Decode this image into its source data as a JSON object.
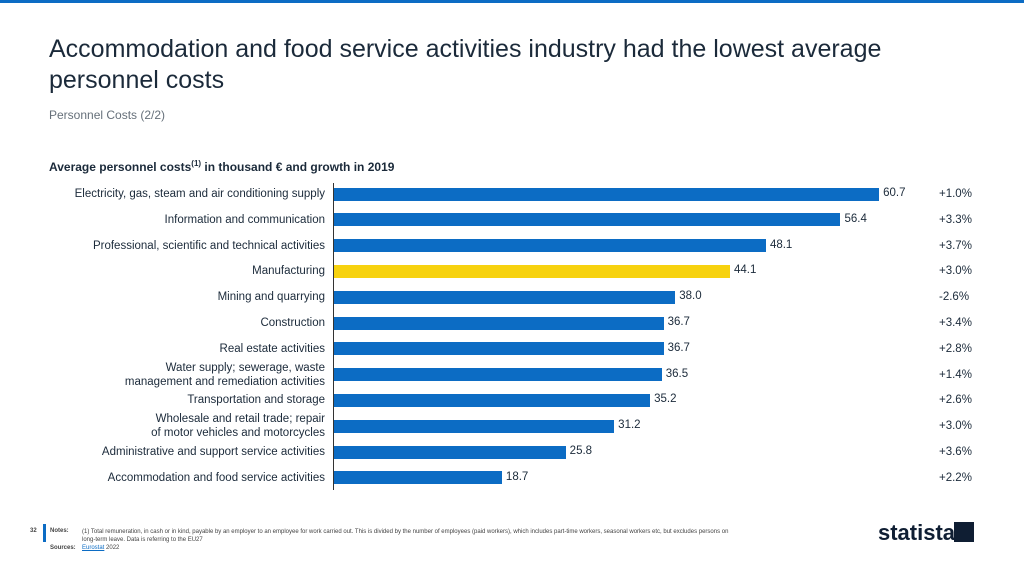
{
  "header": {
    "title": "Accommodation and food service activities industry had the lowest average personnel costs",
    "subtitle": "Personnel Costs (2/2)"
  },
  "chart_data": {
    "type": "bar",
    "orientation": "horizontal",
    "title": "Average personnel costs",
    "title_note": "(1)",
    "title_rest": " in thousand € and growth in 2019",
    "categories": [
      "Electricity, gas, steam and air conditioning supply",
      "Information and communication",
      "Professional, scientific and technical activities",
      "Manufacturing",
      "Mining and quarrying",
      "Construction",
      "Real estate activities",
      "Water supply; sewerage, waste\nmanagement and remediation activities",
      "Transportation and storage",
      "Wholesale and retail trade; repair\nof motor vehicles and motorcycles",
      "Administrative and support service activities",
      "Accommodation and food service activities"
    ],
    "values": [
      60.7,
      56.4,
      48.1,
      44.1,
      38.0,
      36.7,
      36.7,
      36.5,
      35.2,
      31.2,
      25.8,
      18.7
    ],
    "value_labels": [
      "60.7",
      "56.4",
      "48.1",
      "44.1",
      "38.0",
      "36.7",
      "36.7",
      "36.5",
      "35.2",
      "31.2",
      "25.8",
      "18.7"
    ],
    "colors": [
      "#0c6cc4",
      "#0c6cc4",
      "#0c6cc4",
      "#f7d20f",
      "#0c6cc4",
      "#0c6cc4",
      "#0c6cc4",
      "#0c6cc4",
      "#0c6cc4",
      "#0c6cc4",
      "#0c6cc4",
      "#0c6cc4"
    ],
    "growth": [
      1.0,
      3.3,
      3.7,
      3.0,
      -2.6,
      3.4,
      2.8,
      1.4,
      2.6,
      3.0,
      3.6,
      2.2
    ],
    "growth_labels": [
      "+1.0%",
      "+3.3%",
      "+3.7%",
      "+3.0%",
      "-2.6%",
      "+3.4%",
      "+2.8%",
      "+1.4%",
      "+2.6%",
      "+3.0%",
      "+3.6%",
      "+2.2%"
    ]
  },
  "footer": {
    "page": "32",
    "notes_label": "Notes:",
    "notes": "(1) Total remuneration, in cash or in kind, payable by an employer to an employee for work carried out. This is divided by the number of employees (paid workers), which includes part-time workers, seasonal workers etc, but excludes persons on long-term leave. Data is referring to the EU27",
    "sources_label": "Sources:",
    "source": "Eurostat",
    "source_year": "2022",
    "logo": "statista"
  }
}
